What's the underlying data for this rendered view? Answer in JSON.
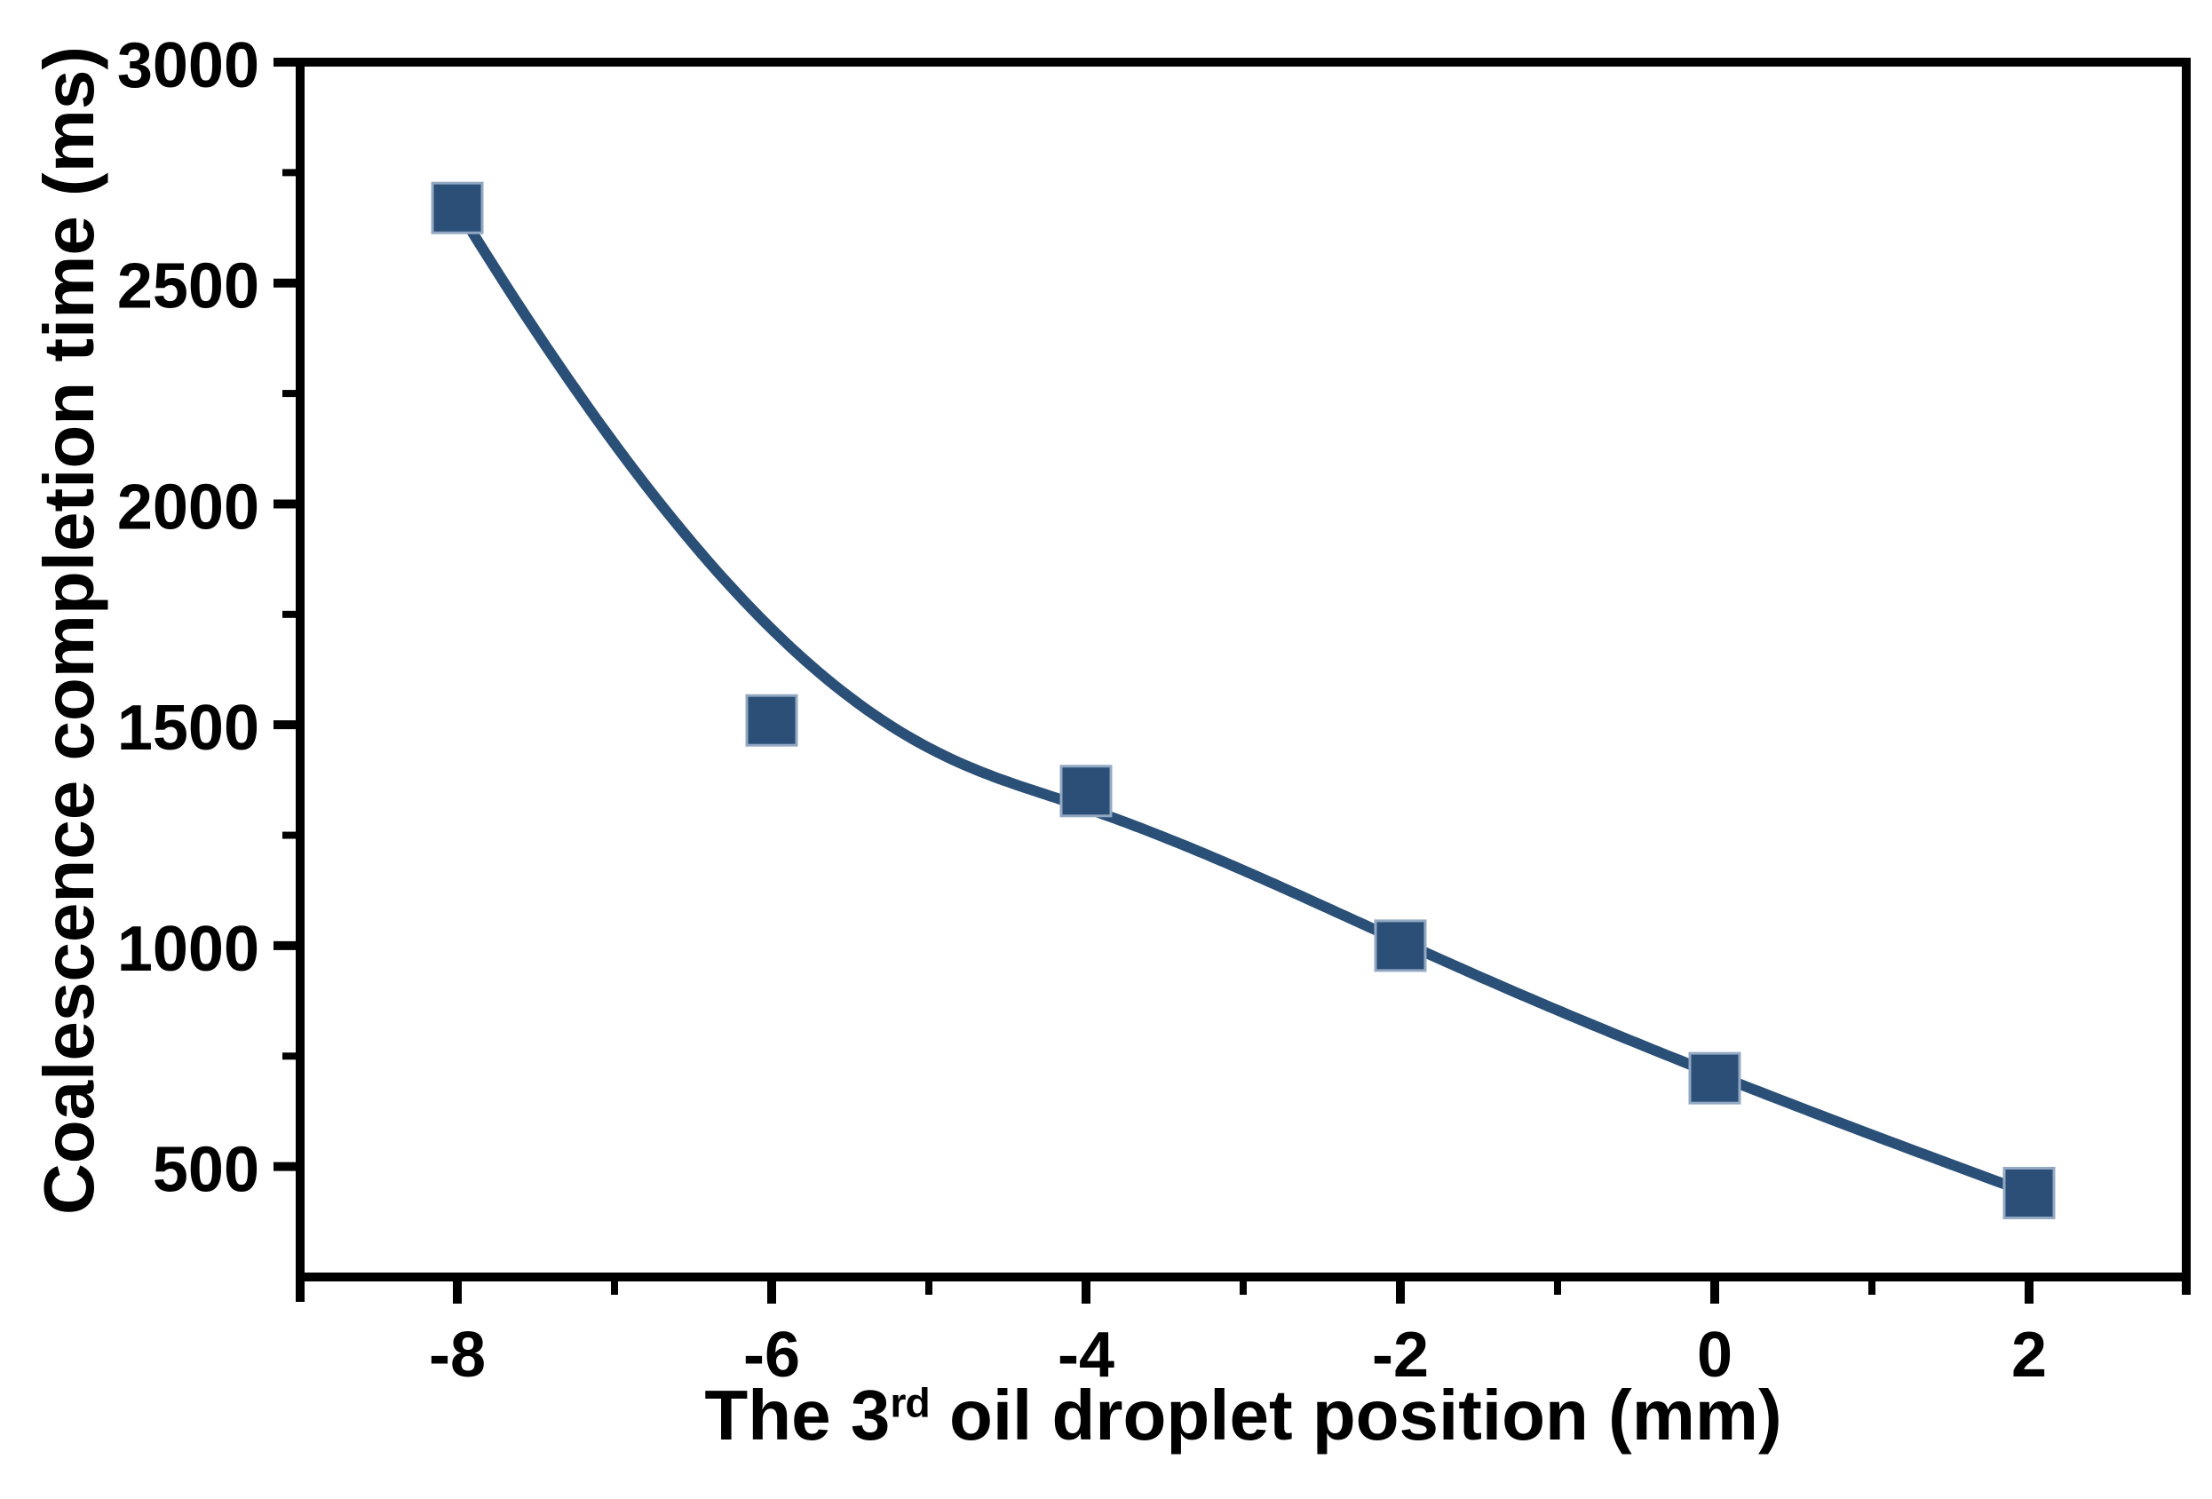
{
  "figure": {
    "background": "#FFFFFF"
  },
  "chart_data": {
    "type": "line",
    "curve": "b-spline",
    "marker": "square",
    "x": [
      -8,
      -6,
      -4,
      -2,
      0,
      2
    ],
    "y": [
      2670,
      1510,
      1350,
      1000,
      700,
      440
    ],
    "xlabel": {
      "prefix": "The 3",
      "superscript": "rd",
      "suffix": " oil droplet position (mm)"
    },
    "ylabel": "Coalescence completion time (ms)",
    "xlim": [
      -9,
      3
    ],
    "ylim": [
      250,
      3000
    ],
    "x_major_ticks": [
      -8,
      -6,
      -4,
      -2,
      0,
      2
    ],
    "x_minor_ticks": [
      -7,
      -5,
      -3,
      -1,
      1
    ],
    "y_major_ticks": [
      500,
      1000,
      1500,
      2000,
      2500,
      3000
    ],
    "y_minor_ticks": [
      750,
      1250,
      1750,
      2250,
      2750
    ],
    "grid": false,
    "legend": null,
    "colors": {
      "line": "#2B5078",
      "marker_fill": "#2B4F76",
      "marker_edge": "#93A9C3",
      "axis": "#000000",
      "text": "#000000"
    }
  }
}
